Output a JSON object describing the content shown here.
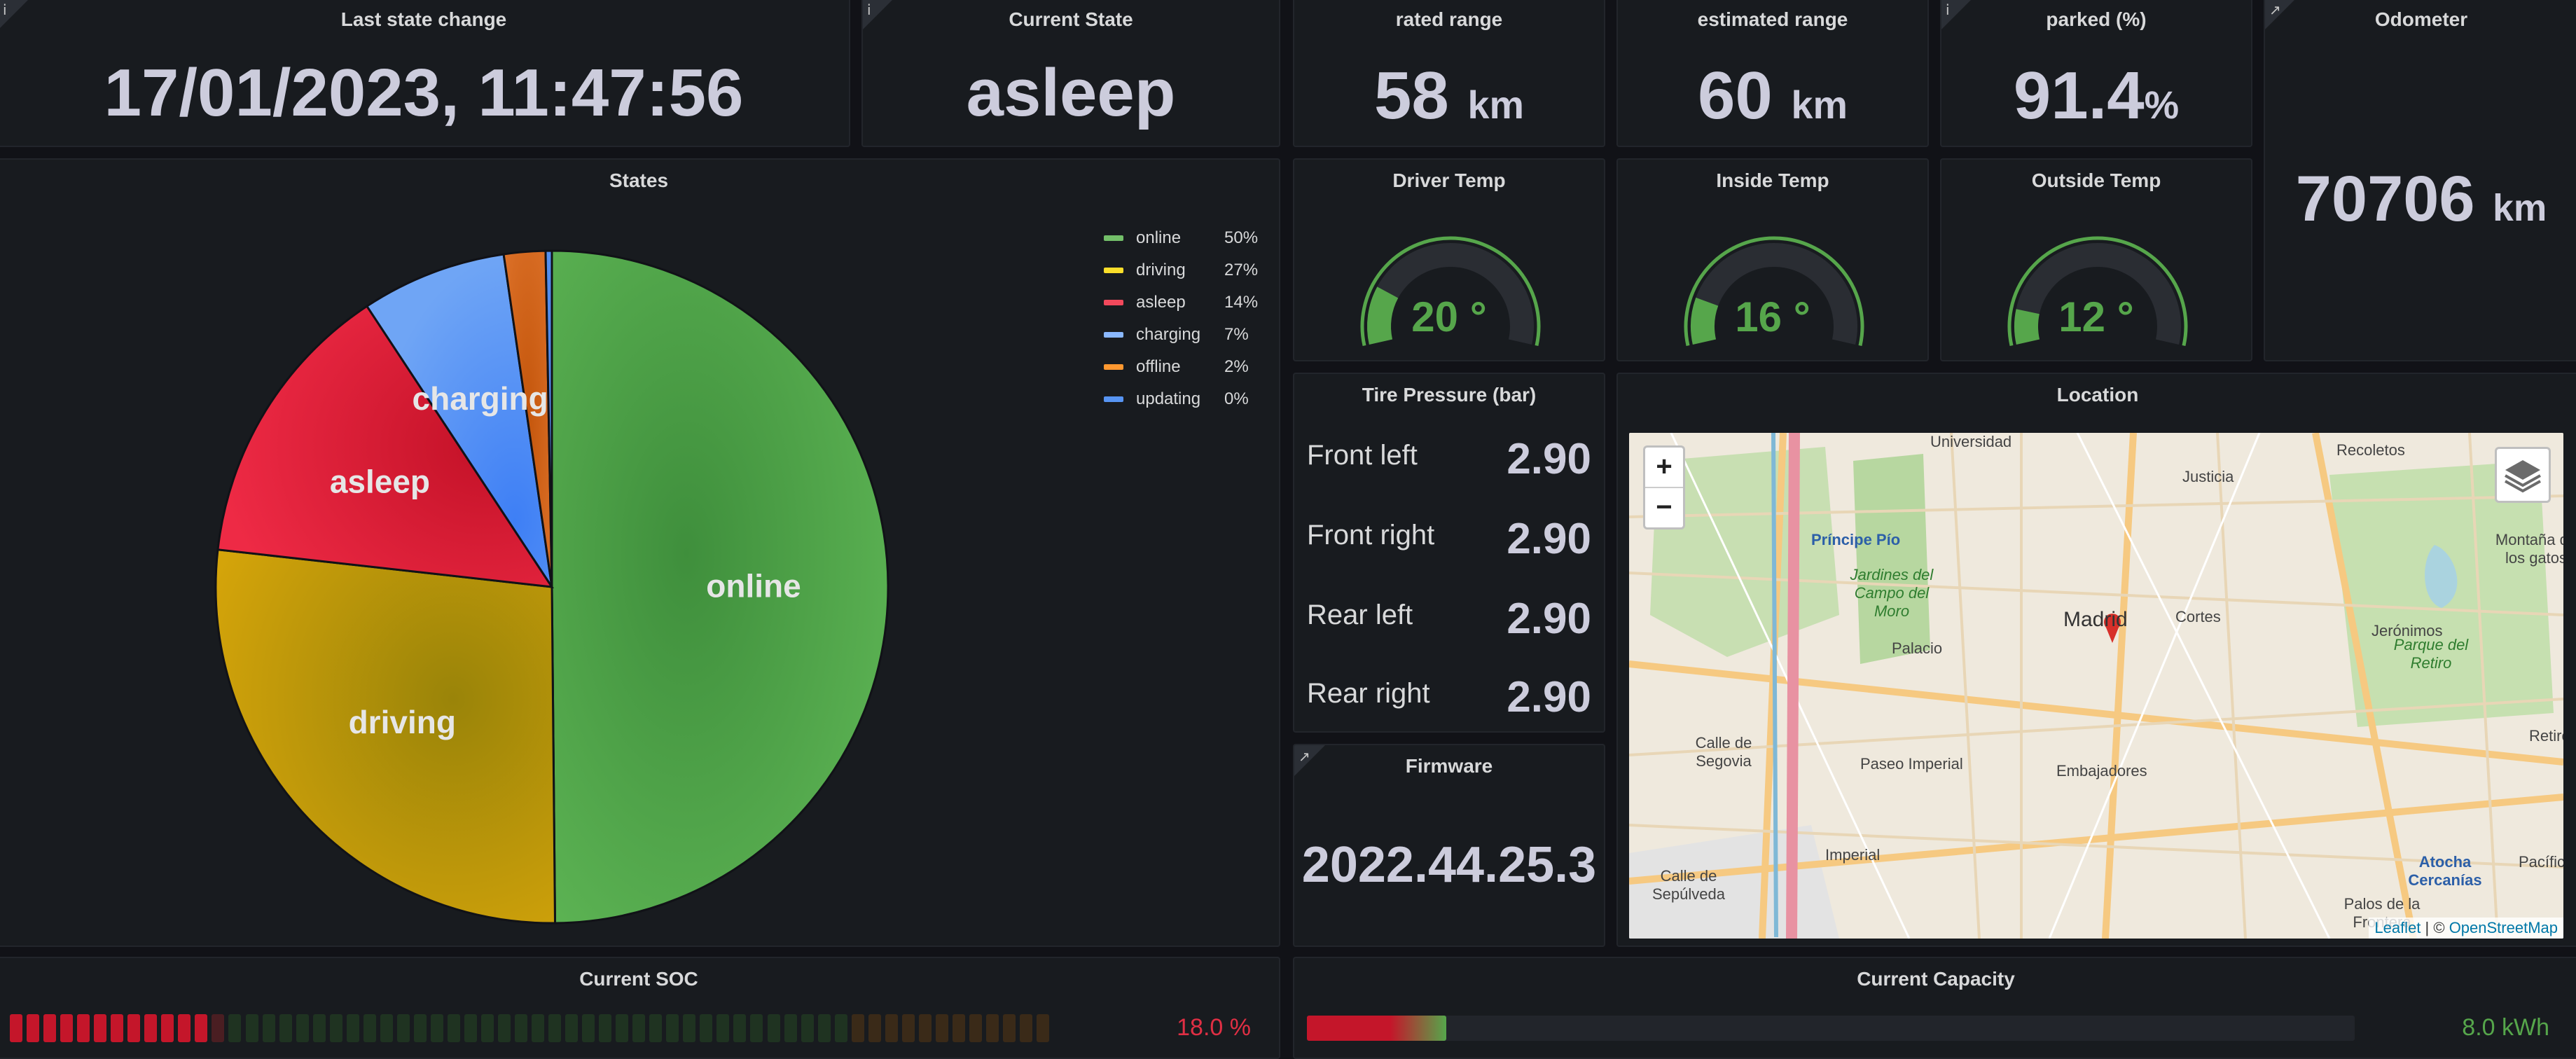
{
  "last_state_change": {
    "title": "Last state change",
    "value": "17/01/2023, 11:47:56"
  },
  "current_state": {
    "title": "Current State",
    "value": "asleep"
  },
  "rated_range": {
    "title": "rated range",
    "value": "58",
    "unit": "km"
  },
  "estimated_range": {
    "title": "estimated range",
    "value": "60",
    "unit": "km"
  },
  "parked": {
    "title": "parked (%)",
    "value": "91.4",
    "unit": "%"
  },
  "odometer": {
    "title": "Odometer",
    "value": "70706",
    "unit": "km"
  },
  "temps": [
    {
      "title": "Driver Temp",
      "value": "20 °",
      "level": 20
    },
    {
      "title": "Inside Temp",
      "value": "16 °",
      "level": 16
    },
    {
      "title": "Outside Temp",
      "value": "12 °",
      "level": 12
    }
  ],
  "tire_pressure": {
    "title": "Tire Pressure (bar)",
    "rows": [
      {
        "label": "Front left",
        "value": "2.90"
      },
      {
        "label": "Front right",
        "value": "2.90"
      },
      {
        "label": "Rear left",
        "value": "2.90"
      },
      {
        "label": "Rear right",
        "value": "2.90"
      }
    ]
  },
  "firmware": {
    "title": "Firmware",
    "value": "2022.44.25.3"
  },
  "location": {
    "title": "Location",
    "zoom_in": "+",
    "zoom_out": "−",
    "attribution_leaflet": "Leaflet",
    "attribution_sep": " | © ",
    "attribution_osm": "OpenStreetMap",
    "labels": [
      "Madrid",
      "Palacio",
      "Cortes",
      "Embajadores",
      "Imperial",
      "Recoletos",
      "Justicia",
      "Jerónimos",
      "Príncipe Pío",
      "Jardines del Campo del Moro",
      "Parque del Retiro",
      "Palos de la Frontera",
      "Atocha Cercanías",
      "Montaña de los gatos",
      "Universidad",
      "Calle de Sepúlveda",
      "Calle de Segovia",
      "Paseo Imperial",
      "Pacífico",
      "Retiro"
    ]
  },
  "states": {
    "title": "States",
    "chart_data": {
      "type": "pie",
      "title": "States",
      "slices": [
        {
          "name": "online",
          "value": 50,
          "label": "50%",
          "color": "#56a64b"
        },
        {
          "name": "driving",
          "value": 27,
          "label": "27%",
          "color": "#c9a004"
        },
        {
          "name": "asleep",
          "value": 14,
          "label": "14%",
          "color": "#e02f44"
        },
        {
          "name": "charging",
          "value": 7,
          "label": "7%",
          "color": "#5794f2"
        },
        {
          "name": "offline",
          "value": 2,
          "label": "2%",
          "color": "#e0752d"
        },
        {
          "name": "updating",
          "value": 0.3,
          "label": "0%",
          "color": "#5794f2"
        }
      ],
      "legend_placement": "right"
    }
  },
  "current_soc": {
    "title": "Current SOC",
    "value": "18.0 %",
    "level": 18.0,
    "color": "#e02f44"
  },
  "current_capacity": {
    "title": "Current Capacity",
    "value": "8.0 kWh",
    "level": 13.3,
    "color": "#56a64b"
  }
}
